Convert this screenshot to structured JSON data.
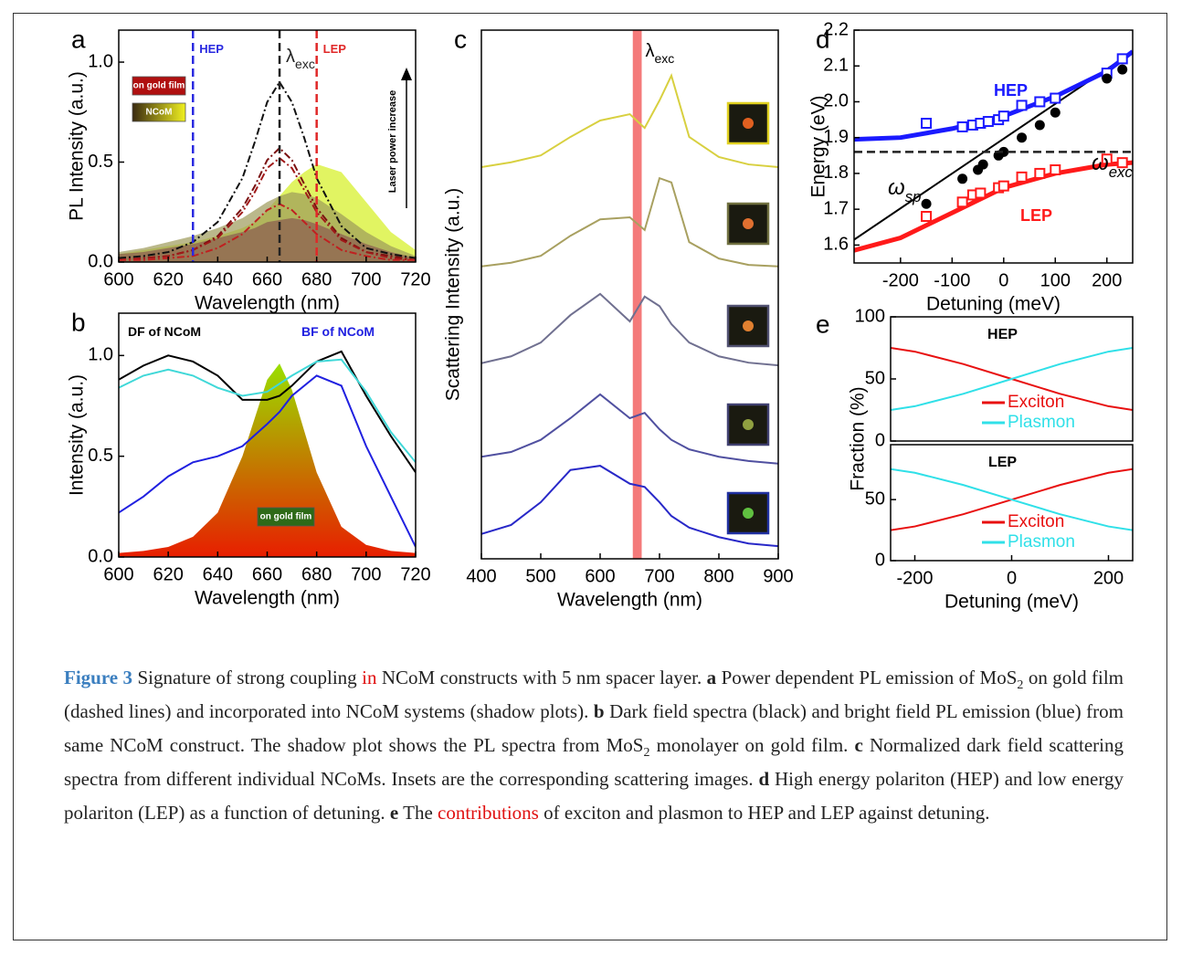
{
  "chart_data": [
    {
      "type": "line",
      "panel_label": "a",
      "xlabel": "Wavelength (nm)",
      "ylabel": "PL Intensity (a.u.)",
      "xlim": [
        600,
        720
      ],
      "ylim": [
        0,
        1.16
      ],
      "xticks": [
        600,
        620,
        640,
        660,
        680,
        700,
        720
      ],
      "yticks": [
        {
          "value": 0,
          "label": "0.0"
        },
        0.5,
        {
          "value": 1,
          "label": "1.0"
        }
      ],
      "x": [
        600,
        610,
        620,
        630,
        640,
        650,
        655,
        660,
        665,
        670,
        675,
        680,
        690,
        700,
        710,
        720
      ],
      "series": [
        {
          "style": "fill",
          "color": "#d4f020",
          "values": [
            0.04,
            0.06,
            0.08,
            0.1,
            0.13,
            0.17,
            0.2,
            0.26,
            0.33,
            0.4,
            0.45,
            0.49,
            0.45,
            0.3,
            0.15,
            0.06
          ]
        },
        {
          "style": "fill",
          "color": "#9c9a5a",
          "values": [
            0.05,
            0.07,
            0.1,
            0.13,
            0.17,
            0.22,
            0.26,
            0.3,
            0.33,
            0.35,
            0.34,
            0.32,
            0.24,
            0.15,
            0.08,
            0.03
          ]
        },
        {
          "style": "fill",
          "color": "#8a5a50",
          "values": [
            0.04,
            0.05,
            0.07,
            0.09,
            0.12,
            0.15,
            0.17,
            0.2,
            0.21,
            0.22,
            0.21,
            0.19,
            0.14,
            0.09,
            0.05,
            0.02
          ]
        },
        {
          "style": "dashdot",
          "color": "#111111",
          "values": [
            0.02,
            0.03,
            0.05,
            0.1,
            0.2,
            0.42,
            0.6,
            0.8,
            0.9,
            0.8,
            0.62,
            0.42,
            0.18,
            0.07,
            0.04,
            0.02
          ]
        },
        {
          "style": "dashdot",
          "color": "#7a1010",
          "values": [
            0.01,
            0.02,
            0.03,
            0.06,
            0.13,
            0.27,
            0.38,
            0.51,
            0.57,
            0.51,
            0.39,
            0.27,
            0.12,
            0.05,
            0.03,
            0.01
          ]
        },
        {
          "style": "dashdot",
          "color": "#a01818",
          "values": [
            0.01,
            0.02,
            0.03,
            0.06,
            0.12,
            0.25,
            0.35,
            0.47,
            0.52,
            0.47,
            0.36,
            0.25,
            0.11,
            0.05,
            0.02,
            0.01
          ]
        },
        {
          "style": "dashdot",
          "color": "#c02020",
          "values": [
            0.01,
            0.01,
            0.02,
            0.03,
            0.07,
            0.14,
            0.2,
            0.26,
            0.29,
            0.26,
            0.2,
            0.14,
            0.06,
            0.03,
            0.01,
            0.01
          ]
        }
      ],
      "vlines": [
        {
          "x": 630,
          "color": "#2a2ae0",
          "label": {
            "text": "HEP"
          }
        },
        {
          "x": 665,
          "color": "#222222",
          "label": {
            "text": "λ",
            "sub": "exc"
          }
        },
        {
          "x": 680,
          "color": "#e02828",
          "label": {
            "text": "LEP"
          }
        }
      ],
      "legend": [
        {
          "label": "on gold film",
          "color": "#b01010"
        },
        {
          "label": "NCoM",
          "color": "#3a2a10",
          "color2": "#f0f020"
        }
      ],
      "arrow_label": "Laser power increase"
    },
    {
      "type": "line",
      "panel_label": "b",
      "xlabel": "Wavelength (nm)",
      "ylabel": "Intensity (a.u.)",
      "xlim": [
        600,
        720
      ],
      "ylim": [
        0,
        1.21
      ],
      "xticks": [
        600,
        620,
        640,
        660,
        680,
        700,
        720
      ],
      "yticks": [
        {
          "value": 0,
          "label": "0.0"
        },
        0.5,
        {
          "value": 1,
          "label": "1.0"
        }
      ],
      "x": [
        600,
        610,
        620,
        630,
        640,
        650,
        660,
        665,
        670,
        680,
        690,
        700,
        710,
        720
      ],
      "series": [
        {
          "style": "fill",
          "color": "#e81e00",
          "color2": "#9adf00",
          "values": [
            0.02,
            0.03,
            0.05,
            0.1,
            0.22,
            0.5,
            0.88,
            0.96,
            0.83,
            0.42,
            0.15,
            0.06,
            0.03,
            0.02
          ]
        },
        {
          "style": "solid",
          "color": "#2020e0",
          "values": [
            0.22,
            0.3,
            0.4,
            0.47,
            0.5,
            0.55,
            0.66,
            0.72,
            0.8,
            0.9,
            0.85,
            0.55,
            0.3,
            0.05
          ]
        },
        {
          "style": "solid",
          "color": "#000000",
          "values": [
            0.88,
            0.95,
            1.0,
            0.97,
            0.9,
            0.78,
            0.78,
            0.8,
            0.85,
            0.97,
            1.02,
            0.8,
            0.6,
            0.42
          ]
        },
        {
          "style": "solid",
          "color": "#40d8d8",
          "values": [
            0.84,
            0.9,
            0.93,
            0.9,
            0.84,
            0.8,
            0.82,
            0.86,
            0.9,
            0.97,
            0.98,
            0.82,
            0.62,
            0.47
          ]
        }
      ],
      "annotations": [
        {
          "text": "DF of NCoM",
          "color": "#000000"
        },
        {
          "text": "BF of NCoM",
          "color": "#2020e0"
        }
      ],
      "legend": [
        {
          "label": "on gold film",
          "color": "#2e6a18"
        }
      ]
    },
    {
      "type": "line",
      "panel_label": "c",
      "xlabel": "Wavelength (nm)",
      "ylabel": "Scattering Intensity (a.u.)",
      "xlim": [
        400,
        900
      ],
      "ylim": [
        0,
        1
      ],
      "xticks": [
        400,
        500,
        600,
        700,
        800,
        900
      ],
      "x": [
        400,
        450,
        500,
        550,
        600,
        650,
        675,
        700,
        720,
        750,
        800,
        850,
        900
      ],
      "band": {
        "x": [
          655,
          670
        ],
        "color": "#f47a7a",
        "label": {
          "text": "λ",
          "sub": "exc"
        }
      },
      "series": [
        {
          "style": "solid",
          "color": "#d8d040",
          "inset": {
            "border": "#e0d020",
            "spot": "#e06020"
          },
          "values": [
            0.741,
            0.75,
            0.763,
            0.798,
            0.829,
            0.841,
            0.815,
            0.867,
            0.914,
            0.798,
            0.76,
            0.746,
            0.741
          ]
        },
        {
          "style": "solid",
          "color": "#a8a060",
          "inset": {
            "border": "#707040",
            "spot": "#e07030"
          },
          "values": [
            0.553,
            0.56,
            0.573,
            0.611,
            0.642,
            0.646,
            0.622,
            0.72,
            0.712,
            0.599,
            0.568,
            0.556,
            0.553
          ]
        },
        {
          "style": "solid",
          "color": "#707090",
          "inset": {
            "border": "#505070",
            "spot": "#e08030"
          },
          "values": [
            0.37,
            0.383,
            0.409,
            0.461,
            0.501,
            0.449,
            0.496,
            0.478,
            0.444,
            0.409,
            0.383,
            0.371,
            0.366
          ]
        },
        {
          "style": "solid",
          "color": "#5050a0",
          "inset": {
            "border": "#404070",
            "spot": "#90a040"
          },
          "values": [
            0.193,
            0.202,
            0.225,
            0.266,
            0.311,
            0.266,
            0.276,
            0.245,
            0.225,
            0.207,
            0.193,
            0.185,
            0.18
          ]
        },
        {
          "style": "solid",
          "color": "#2828c8",
          "inset": {
            "border": "#2030a0",
            "spot": "#60c040"
          },
          "values": [
            0.047,
            0.064,
            0.107,
            0.168,
            0.176,
            0.142,
            0.136,
            0.107,
            0.081,
            0.059,
            0.041,
            0.029,
            0.024
          ]
        }
      ]
    },
    {
      "type": "line",
      "panel_label": "d",
      "xlabel": "Detuning (meV)",
      "ylabel": "Energy (eV)",
      "xlim": [
        -290,
        250
      ],
      "ylim": [
        1.55,
        2.2
      ],
      "xticks": [
        -200,
        -100,
        0,
        100,
        200
      ],
      "yticks": [
        1.6,
        1.7,
        1.8,
        1.9,
        {
          "value": 2,
          "label": "2.0"
        },
        2.1,
        2.2
      ],
      "hlines": [
        {
          "y": 1.86,
          "color": "#222222"
        }
      ],
      "series": [
        {
          "style": "solid",
          "color": "#000000",
          "x": [
            -290,
            250
          ],
          "values": [
            1.615,
            2.14
          ]
        },
        {
          "style": "thick",
          "color": "#1a1aff",
          "x": [
            -290,
            -200,
            -100,
            0,
            100,
            200,
            250
          ],
          "values": [
            1.895,
            1.9,
            1.925,
            1.96,
            2.015,
            2.085,
            2.14
          ]
        },
        {
          "style": "thick",
          "color": "#ff1a1a",
          "x": [
            -290,
            -200,
            -100,
            0,
            100,
            200,
            250
          ],
          "values": [
            1.585,
            1.62,
            1.69,
            1.76,
            1.8,
            1.825,
            1.83
          ]
        },
        {
          "marker": "square",
          "color": "#1a1aff",
          "x": [
            -150,
            -80,
            -60,
            -45,
            -30,
            -10,
            0,
            35,
            70,
            100,
            200,
            230
          ],
          "values": [
            1.94,
            1.93,
            1.935,
            1.94,
            1.945,
            1.95,
            1.96,
            1.99,
            2.0,
            2.01,
            2.08,
            2.12
          ]
        },
        {
          "marker": "square",
          "color": "#ff1a1a",
          "x": [
            -150,
            -80,
            -60,
            -45,
            -10,
            0,
            35,
            70,
            100,
            200,
            230
          ],
          "values": [
            1.68,
            1.72,
            1.74,
            1.745,
            1.76,
            1.765,
            1.79,
            1.8,
            1.81,
            1.84,
            1.83
          ]
        },
        {
          "marker": "dot",
          "color": "#000000",
          "x": [
            -150,
            -80,
            -50,
            -40,
            -10,
            0,
            35,
            70,
            100,
            200,
            230
          ],
          "values": [
            1.715,
            1.785,
            1.81,
            1.825,
            1.85,
            1.86,
            1.9,
            1.935,
            1.97,
            2.065,
            2.09
          ]
        }
      ],
      "annotations": [
        {
          "text": "HEP",
          "color": "#1a1aff"
        },
        {
          "text": "LEP",
          "color": "#ff1a1a"
        },
        {
          "text": "ω",
          "sub": "sp",
          "color": "#000000"
        },
        {
          "text": "ω",
          "sub": "exc",
          "color": "#000000"
        }
      ]
    },
    {
      "type": "line",
      "panel_label": "e",
      "ylabel": "Fraction (%)",
      "title": "HEP",
      "xlim": [
        -250,
        250
      ],
      "ylim": [
        0,
        100
      ],
      "yticks": [
        0,
        50,
        100
      ],
      "x": [
        -250,
        -200,
        -100,
        0,
        100,
        200,
        250
      ],
      "series": [
        {
          "name": "Exciton",
          "style": "solid",
          "color": "#e81010",
          "values": [
            75,
            72,
            62,
            50,
            38,
            28,
            25
          ]
        },
        {
          "name": "Plasmon",
          "style": "solid",
          "color": "#30e0e8",
          "values": [
            25,
            28,
            38,
            50,
            62,
            72,
            75
          ]
        }
      ]
    },
    {
      "type": "line",
      "title": "LEP",
      "xlabel": "Detuning (meV)",
      "xlim": [
        -250,
        250
      ],
      "ylim": [
        0,
        95
      ],
      "xticks": [
        -200,
        0,
        200
      ],
      "yticks": [
        0,
        50
      ],
      "x": [
        -250,
        -200,
        -100,
        0,
        100,
        200,
        250
      ],
      "series": [
        {
          "name": "Exciton",
          "style": "solid",
          "color": "#e81010",
          "values": [
            25,
            28,
            38,
            50,
            62,
            72,
            75
          ]
        },
        {
          "name": "Plasmon",
          "style": "solid",
          "color": "#30e0e8",
          "values": [
            75,
            72,
            62,
            50,
            38,
            28,
            25
          ]
        }
      ]
    }
  ],
  "caption": [
    {
      "text": "Figure 3",
      "bold": true,
      "color": "#3a7ebf"
    },
    {
      "text": " Signature of strong coupling "
    },
    {
      "text": "in",
      "color": "#e01010"
    },
    {
      "text": " NCoM constructs with 5 nm spacer layer. "
    },
    {
      "text": "a",
      "bold": true
    },
    {
      "text": " Power dependent PL emission of MoS"
    },
    {
      "text": "2",
      "sub": true
    },
    {
      "text": " on gold film (dashed lines) and incorporated into NCoM systems (shadow plots). "
    },
    {
      "text": "b",
      "bold": true
    },
    {
      "text": " Dark field spectra (black) and bright field PL emission (blue) from same NCoM construct. The shadow plot shows the PL spectra from MoS"
    },
    {
      "text": "2",
      "sub": true
    },
    {
      "text": " monolayer on gold film. "
    },
    {
      "text": "c",
      "bold": true
    },
    {
      "text": " Normalized dark field scattering spectra from different individual NCoMs. Insets are the corresponding scattering images. "
    },
    {
      "text": "d",
      "bold": true
    },
    {
      "text": " High energy polariton (HEP) and low energy polariton (LEP) as a function of detuning. "
    },
    {
      "text": "e",
      "bold": true
    },
    {
      "text": " The "
    },
    {
      "text": "contributions",
      "color": "#e01010"
    },
    {
      "text": " of exciton and plasmon to HEP and LEP against detuning."
    }
  ]
}
